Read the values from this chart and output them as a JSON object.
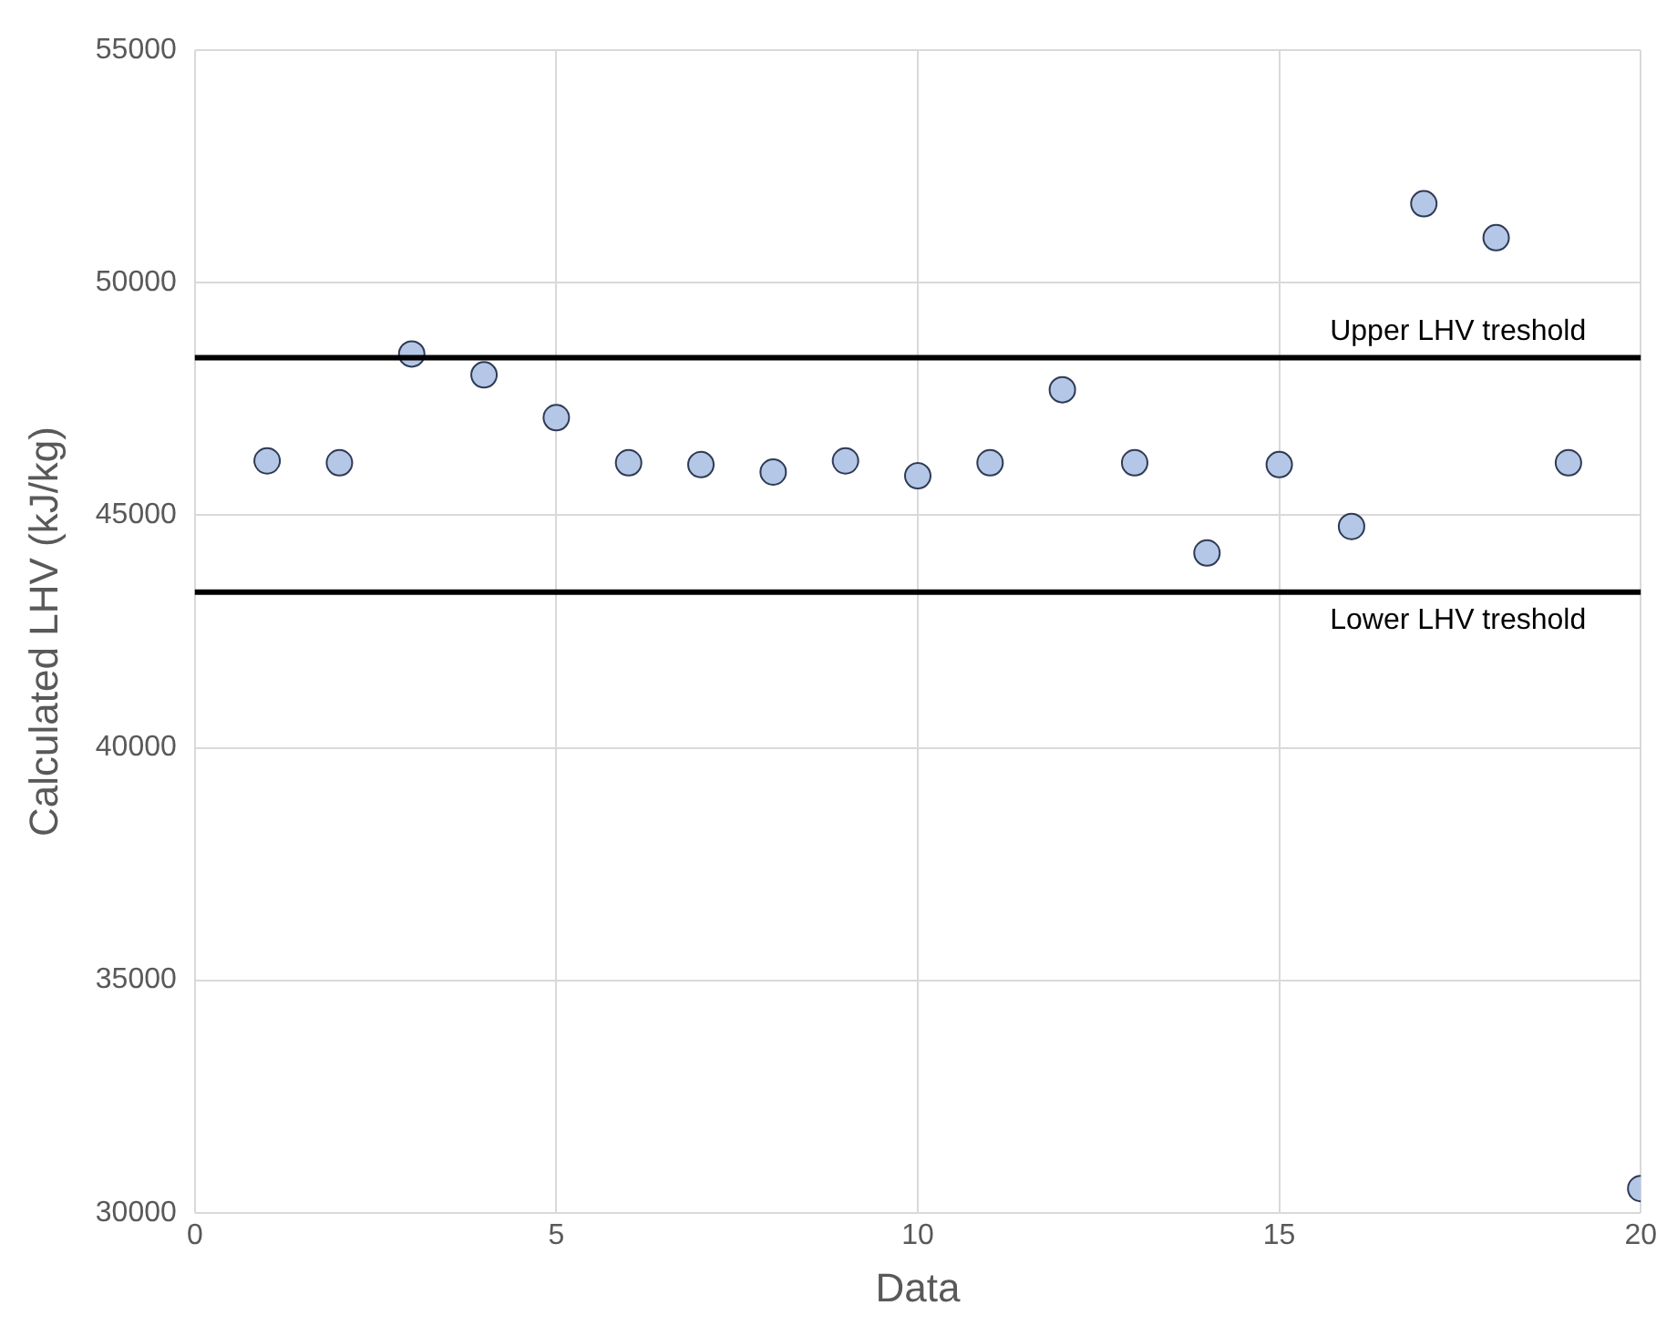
{
  "chart_data": {
    "type": "scatter",
    "xlabel": "Data",
    "ylabel": "Calculated LHV (kJ/kg)",
    "x": [
      1,
      2,
      3,
      4,
      5,
      6,
      7,
      8,
      9,
      10,
      11,
      12,
      13,
      14,
      15,
      16,
      17,
      18,
      19,
      20
    ],
    "series": [
      {
        "color": "#b4c7e7",
        "values": [
          46170,
          46130,
          48470,
          48020,
          47100,
          46130,
          46090,
          45930,
          46170,
          45850,
          46130,
          47700,
          46130,
          44190,
          46090,
          44760,
          51700,
          50970,
          46130,
          30520
        ]
      }
    ],
    "xlim": [
      0,
      20
    ],
    "xticks": [
      0,
      5,
      10,
      15,
      20
    ],
    "ylim": [
      30000,
      55000
    ],
    "yticks": [
      30000,
      35000,
      40000,
      45000,
      50000,
      55000
    ],
    "ref_lines": [
      {
        "axis": "y",
        "value": 48390,
        "label": "Upper LHV treshold",
        "color": "#000000"
      },
      {
        "axis": "y",
        "value": 43350,
        "label": "Lower LHV treshold",
        "color": "#000000"
      }
    ],
    "grid": true,
    "legend": false,
    "marker": "circle"
  }
}
